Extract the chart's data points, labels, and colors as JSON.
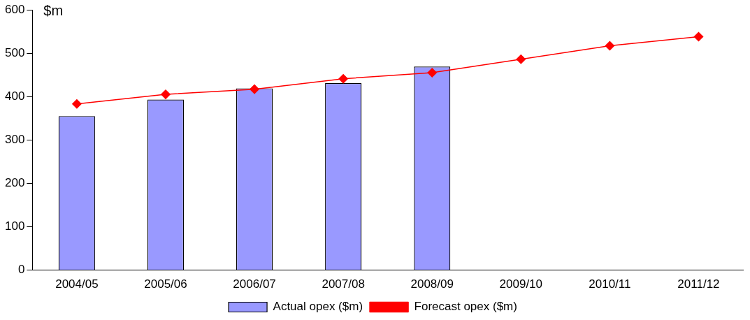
{
  "chart_data": {
    "type": "bar",
    "ylabel": "$m",
    "categories": [
      "2004/05",
      "2005/06",
      "2006/07",
      "2007/08",
      "2008/09",
      "2009/10",
      "2010/11",
      "2011/12"
    ],
    "series": [
      {
        "name": "Actual opex ($m)",
        "color": "#9999ff",
        "values": [
          355,
          393,
          419,
          431,
          469,
          null,
          null,
          null
        ]
      },
      {
        "name": "Forecast opex ($m)",
        "type": "line",
        "color": "#ff0000",
        "marker": "diamond",
        "values": [
          383,
          405,
          417,
          441,
          455,
          486,
          517,
          538
        ]
      }
    ],
    "ylim": [
      0,
      600
    ],
    "yticks": [
      0,
      100,
      200,
      300,
      400,
      500,
      600
    ],
    "grid": false,
    "legend": "bottom"
  }
}
